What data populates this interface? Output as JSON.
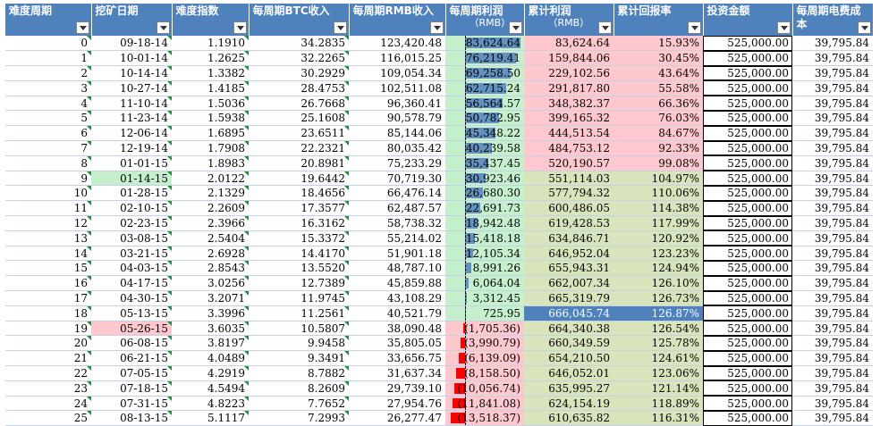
{
  "headers": [
    {
      "label": "难度周期"
    },
    {
      "label": "挖矿日期"
    },
    {
      "label": "难度指数"
    },
    {
      "label": "每周期BTC收入"
    },
    {
      "label": "每周期RMB收入"
    },
    {
      "label": "每周期利润",
      "sub": "（RMB）"
    },
    {
      "label": "累计利润",
      "sub": "（RMB）"
    },
    {
      "label": "累计回报率"
    },
    {
      "label": "投资金额"
    },
    {
      "label": "每周期电费成本"
    }
  ],
  "rows": [
    {
      "period": "0",
      "date": "09-18-14",
      "diff": "1.1910",
      "btc": "34.2835",
      "rmb": "123,420.48",
      "profit": 83624.64,
      "profit_text": "83,624.64",
      "cum": "83,624.64",
      "roi": "15.93%",
      "invest": "525,000.00",
      "elec": "39,795.84"
    },
    {
      "period": "1",
      "date": "10-01-14",
      "diff": "1.2625",
      "btc": "32.2265",
      "rmb": "116,015.25",
      "profit": 76219.41,
      "profit_text": "76,219.41",
      "cum": "159,844.06",
      "roi": "30.45%",
      "invest": "525,000.00",
      "elec": "39,795.84"
    },
    {
      "period": "2",
      "date": "10-14-14",
      "diff": "1.3382",
      "btc": "30.2929",
      "rmb": "109,054.34",
      "profit": 69258.5,
      "profit_text": "69,258.50",
      "cum": "229,102.56",
      "roi": "43.64%",
      "invest": "525,000.00",
      "elec": "39,795.84"
    },
    {
      "period": "3",
      "date": "10-27-14",
      "diff": "1.4185",
      "btc": "28.4753",
      "rmb": "102,511.08",
      "profit": 62715.24,
      "profit_text": "62,715.24",
      "cum": "291,817.80",
      "roi": "55.58%",
      "invest": "525,000.00",
      "elec": "39,795.84"
    },
    {
      "period": "4",
      "date": "11-10-14",
      "diff": "1.5036",
      "btc": "26.7668",
      "rmb": "96,360.41",
      "profit": 56564.57,
      "profit_text": "56,564.57",
      "cum": "348,382.37",
      "roi": "66.36%",
      "invest": "525,000.00",
      "elec": "39,795.84"
    },
    {
      "period": "5",
      "date": "11-23-14",
      "diff": "1.5938",
      "btc": "25.1608",
      "rmb": "90,578.79",
      "profit": 50782.95,
      "profit_text": "50,782.95",
      "cum": "399,165.32",
      "roi": "76.03%",
      "invest": "525,000.00",
      "elec": "39,795.84"
    },
    {
      "period": "6",
      "date": "12-06-14",
      "diff": "1.6895",
      "btc": "23.6511",
      "rmb": "85,144.06",
      "profit": 45348.22,
      "profit_text": "45,348.22",
      "cum": "444,513.54",
      "roi": "84.67%",
      "invest": "525,000.00",
      "elec": "39,795.84"
    },
    {
      "period": "7",
      "date": "12-19-14",
      "diff": "1.7908",
      "btc": "22.2321",
      "rmb": "80,035.42",
      "profit": 40239.58,
      "profit_text": "40,239.58",
      "cum": "484,753.12",
      "roi": "92.33%",
      "invest": "525,000.00",
      "elec": "39,795.84"
    },
    {
      "period": "8",
      "date": "01-01-15",
      "diff": "1.8983",
      "btc": "20.8981",
      "rmb": "75,233.29",
      "profit": 35437.45,
      "profit_text": "35,437.45",
      "cum": "520,190.57",
      "roi": "99.08%",
      "invest": "525,000.00",
      "elec": "39,795.84"
    },
    {
      "period": "9",
      "date": "01-14-15",
      "diff": "2.0122",
      "btc": "19.6442",
      "rmb": "70,719.30",
      "profit": 30923.46,
      "profit_text": "30,923.46",
      "cum": "551,114.03",
      "roi": "104.97%",
      "invest": "525,000.00",
      "elec": "39,795.84"
    },
    {
      "period": "10",
      "date": "01-28-15",
      "diff": "2.1329",
      "btc": "18.4656",
      "rmb": "66,476.14",
      "profit": 26680.3,
      "profit_text": "26,680.30",
      "cum": "577,794.32",
      "roi": "110.06%",
      "invest": "525,000.00",
      "elec": "39,795.84"
    },
    {
      "period": "11",
      "date": "02-10-15",
      "diff": "2.2609",
      "btc": "17.3577",
      "rmb": "62,487.57",
      "profit": 22691.73,
      "profit_text": "22,691.73",
      "cum": "600,486.05",
      "roi": "114.38%",
      "invest": "525,000.00",
      "elec": "39,795.84"
    },
    {
      "period": "12",
      "date": "02-23-15",
      "diff": "2.3966",
      "btc": "16.3162",
      "rmb": "58,738.32",
      "profit": 18942.48,
      "profit_text": "18,942.48",
      "cum": "619,428.53",
      "roi": "117.99%",
      "invest": "525,000.00",
      "elec": "39,795.84"
    },
    {
      "period": "13",
      "date": "03-08-15",
      "diff": "2.5404",
      "btc": "15.3372",
      "rmb": "55,214.02",
      "profit": 15418.18,
      "profit_text": "15,418.18",
      "cum": "634,846.71",
      "roi": "120.92%",
      "invest": "525,000.00",
      "elec": "39,795.84"
    },
    {
      "period": "14",
      "date": "03-21-15",
      "diff": "2.6928",
      "btc": "14.4170",
      "rmb": "51,901.18",
      "profit": 12105.34,
      "profit_text": "12,105.34",
      "cum": "646,952.04",
      "roi": "123.23%",
      "invest": "525,000.00",
      "elec": "39,795.84"
    },
    {
      "period": "15",
      "date": "04-03-15",
      "diff": "2.8543",
      "btc": "13.5520",
      "rmb": "48,787.10",
      "profit": 8991.26,
      "profit_text": "8,991.26",
      "cum": "655,943.31",
      "roi": "124.94%",
      "invest": "525,000.00",
      "elec": "39,795.84"
    },
    {
      "period": "16",
      "date": "04-17-15",
      "diff": "3.0256",
      "btc": "12.7389",
      "rmb": "45,859.88",
      "profit": 6064.04,
      "profit_text": "6,064.04",
      "cum": "662,007.34",
      "roi": "126.10%",
      "invest": "525,000.00",
      "elec": "39,795.84"
    },
    {
      "period": "17",
      "date": "04-30-15",
      "diff": "3.2071",
      "btc": "11.9745",
      "rmb": "43,108.29",
      "profit": 3312.45,
      "profit_text": "3,312.45",
      "cum": "665,319.79",
      "roi": "126.73%",
      "invest": "525,000.00",
      "elec": "39,795.84"
    },
    {
      "period": "18",
      "date": "05-13-15",
      "diff": "3.3996",
      "btc": "11.2561",
      "rmb": "40,521.79",
      "profit": 725.95,
      "profit_text": "725.95",
      "cum": "666,045.74",
      "roi": "126.87%",
      "invest": "525,000.00",
      "elec": "39,795.84"
    },
    {
      "period": "19",
      "date": "05-26-15",
      "diff": "3.6035",
      "btc": "10.5807",
      "rmb": "38,090.48",
      "profit": -1705.36,
      "profit_text": "(1,705.36)",
      "cum": "664,340.38",
      "roi": "126.54%",
      "invest": "525,000.00",
      "elec": "39,795.84"
    },
    {
      "period": "20",
      "date": "06-08-15",
      "diff": "3.8197",
      "btc": "9.9458",
      "rmb": "35,805.05",
      "profit": -3990.79,
      "profit_text": "(3,990.79)",
      "cum": "660,349.59",
      "roi": "125.78%",
      "invest": "525,000.00",
      "elec": "39,795.84"
    },
    {
      "period": "21",
      "date": "06-21-15",
      "diff": "4.0489",
      "btc": "9.3491",
      "rmb": "33,656.75",
      "profit": -6139.09,
      "profit_text": "(6,139.09)",
      "cum": "654,210.50",
      "roi": "124.61%",
      "invest": "525,000.00",
      "elec": "39,795.84"
    },
    {
      "period": "22",
      "date": "07-05-15",
      "diff": "4.2919",
      "btc": "8.7882",
      "rmb": "31,637.34",
      "profit": -8158.5,
      "profit_text": "(8,158.50)",
      "cum": "646,052.01",
      "roi": "123.06%",
      "invest": "525,000.00",
      "elec": "39,795.84"
    },
    {
      "period": "23",
      "date": "07-18-15",
      "diff": "4.5494",
      "btc": "8.2609",
      "rmb": "29,739.10",
      "profit": -10056.74,
      "profit_text": "(10,056.74)",
      "cum": "635,995.27",
      "roi": "121.14%",
      "invest": "525,000.00",
      "elec": "39,795.84"
    },
    {
      "period": "24",
      "date": "07-31-15",
      "diff": "4.8223",
      "btc": "7.7652",
      "rmb": "27,954.76",
      "profit": -11841.08,
      "profit_text": "(11,841.08)",
      "cum": "624,154.19",
      "roi": "118.89%",
      "invest": "525,000.00",
      "elec": "39,795.84"
    },
    {
      "period": "25",
      "date": "08-13-15",
      "diff": "5.1117",
      "btc": "7.2993",
      "rmb": "26,277.47",
      "profit": -13518.37,
      "profit_text": "(13,518.37)",
      "cum": "610,635.82",
      "roi": "116.31%",
      "invest": "525,000.00",
      "elec": "39,795.84"
    }
  ],
  "colors": {
    "header_bg": "#4f81bd",
    "header_text": "#ffffff",
    "green_fill": "#c6efce",
    "pink_fill": "#ffc7ce",
    "olive_fill": "#d8e4bc",
    "databar_pos": "#4f81bd",
    "databar_neg": "#ff0000",
    "grid_line": "#c5d2e6",
    "indicator": "#1e8f3a"
  }
}
